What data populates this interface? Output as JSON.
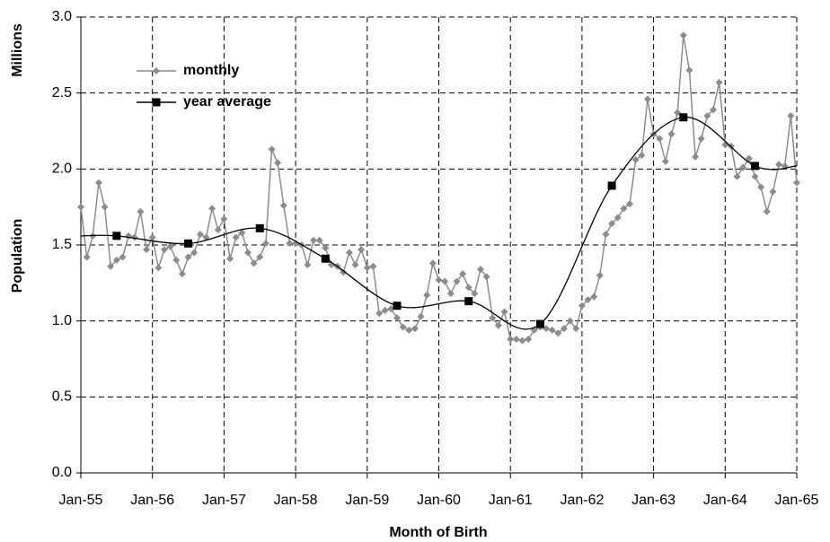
{
  "chart_data": {
    "type": "line",
    "x_label": "Month of Birth",
    "y_label": "Population",
    "y_unit": "Millions",
    "categories": [
      "Jan-55",
      null,
      null,
      null,
      null,
      null,
      null,
      null,
      null,
      null,
      null,
      null,
      "Jan-56",
      null,
      null,
      null,
      null,
      null,
      null,
      null,
      null,
      null,
      null,
      null,
      "Jan-57",
      null,
      null,
      null,
      null,
      null,
      null,
      null,
      null,
      null,
      null,
      null,
      "Jan-58",
      null,
      null,
      null,
      null,
      null,
      null,
      null,
      null,
      null,
      null,
      null,
      "Jan-59",
      null,
      null,
      null,
      null,
      null,
      null,
      null,
      null,
      null,
      null,
      null,
      "Jan-60",
      null,
      null,
      null,
      null,
      null,
      null,
      null,
      null,
      null,
      null,
      null,
      "Jan-61",
      null,
      null,
      null,
      null,
      null,
      null,
      null,
      null,
      null,
      null,
      null,
      "Jan-62",
      null,
      null,
      null,
      null,
      null,
      null,
      null,
      null,
      null,
      null,
      null,
      "Jan-63",
      null,
      null,
      null,
      null,
      null,
      null,
      null,
      null,
      null,
      null,
      null,
      "Jan-64",
      null,
      null,
      null,
      null,
      null,
      null,
      null,
      null,
      null,
      null,
      null,
      "Jan-65"
    ],
    "series": [
      {
        "name": "monthly",
        "color": "#8c8c8c",
        "marker": "diamond",
        "values": [
          1.75,
          1.42,
          1.56,
          1.91,
          1.75,
          1.36,
          1.4,
          1.42,
          1.56,
          1.55,
          1.72,
          1.47,
          1.55,
          1.35,
          1.47,
          1.49,
          1.4,
          1.31,
          1.42,
          1.45,
          1.57,
          1.55,
          1.74,
          1.6,
          1.67,
          1.41,
          1.55,
          1.58,
          1.45,
          1.38,
          1.42,
          1.51,
          2.13,
          2.04,
          1.76,
          1.51,
          1.51,
          1.5,
          1.37,
          1.53,
          1.53,
          1.48,
          1.37,
          1.36,
          1.32,
          1.45,
          1.37,
          1.47,
          1.35,
          1.36,
          1.05,
          1.07,
          1.08,
          1.02,
          0.96,
          0.94,
          0.95,
          1.03,
          1.17,
          1.38,
          1.27,
          1.26,
          1.18,
          1.26,
          1.31,
          1.22,
          1.18,
          1.34,
          1.29,
          1.02,
          0.97,
          1.06,
          0.88,
          0.88,
          0.87,
          0.88,
          0.94,
          0.96,
          0.95,
          0.94,
          0.92,
          0.95,
          1.0,
          0.95,
          1.1,
          1.14,
          1.16,
          1.3,
          1.57,
          1.64,
          1.68,
          1.74,
          1.77,
          2.06,
          2.09,
          2.46,
          2.23,
          2.2,
          2.05,
          2.23,
          2.37,
          2.88,
          2.65,
          2.08,
          2.2,
          2.35,
          2.39,
          2.57,
          2.16,
          2.15,
          1.95,
          2.01,
          2.07,
          1.95,
          1.88,
          1.72,
          1.85,
          2.03,
          2.02,
          2.35,
          1.91
        ]
      },
      {
        "name": "year average",
        "color": "#000000",
        "marker": "square",
        "values": [
          null,
          null,
          null,
          null,
          null,
          null,
          1.56,
          null,
          null,
          null,
          null,
          null,
          null,
          null,
          null,
          null,
          null,
          null,
          1.51,
          null,
          null,
          null,
          null,
          null,
          null,
          null,
          null,
          null,
          null,
          null,
          1.61,
          null,
          null,
          null,
          null,
          null,
          null,
          null,
          null,
          null,
          null,
          1.41,
          null,
          null,
          null,
          null,
          null,
          null,
          null,
          null,
          null,
          null,
          null,
          1.1,
          null,
          null,
          null,
          null,
          null,
          null,
          null,
          null,
          null,
          null,
          null,
          1.13,
          null,
          null,
          null,
          null,
          null,
          null,
          null,
          null,
          null,
          null,
          null,
          0.98,
          null,
          null,
          null,
          null,
          null,
          null,
          null,
          null,
          null,
          null,
          null,
          1.89,
          null,
          null,
          null,
          null,
          null,
          null,
          null,
          null,
          null,
          null,
          null,
          2.34,
          null,
          null,
          null,
          null,
          null,
          null,
          null,
          null,
          null,
          null,
          null,
          2.02,
          null,
          null,
          null,
          null,
          null,
          null,
          null
        ]
      }
    ],
    "ylim": [
      0,
      3
    ],
    "yticks": [
      {
        "value": 0,
        "label": "0.0"
      },
      0.5,
      {
        "value": 1,
        "label": "1.0"
      },
      1.5,
      {
        "value": 2,
        "label": "2.0"
      },
      2.5,
      {
        "value": 3,
        "label": "3.0"
      }
    ],
    "grid": true,
    "legend": "upper left"
  }
}
